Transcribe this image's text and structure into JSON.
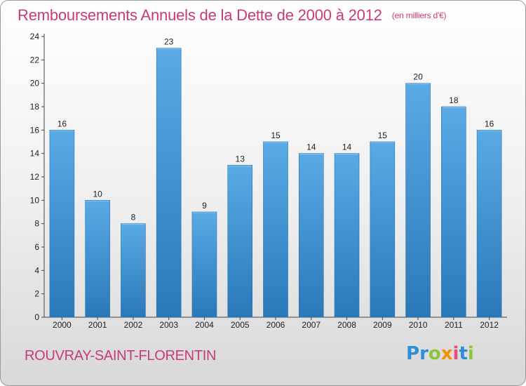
{
  "chart_data": {
    "type": "bar",
    "title": "Remboursements Annuels de la Dette de 2000 à 2012",
    "subtitle": "(en milliers d'€)",
    "categories": [
      "2000",
      "2001",
      "2002",
      "2003",
      "2004",
      "2005",
      "2006",
      "2007",
      "2008",
      "2009",
      "2010",
      "2011",
      "2012"
    ],
    "values": [
      16,
      10,
      8,
      23,
      9,
      13,
      15,
      14,
      14,
      15,
      20,
      18,
      16
    ],
    "ylim": [
      0,
      24
    ],
    "yticks": [
      0,
      2,
      4,
      6,
      8,
      10,
      12,
      14,
      16,
      18,
      20,
      22,
      24
    ],
    "xlabel": "",
    "ylabel": "",
    "grid": false,
    "bar_color_top": "#5aaae6",
    "bar_color_bottom": "#2a78b8"
  },
  "footer": {
    "commune": "ROUVRAY-SAINT-FLORENTIN",
    "logo_letters": [
      "P",
      "r",
      "o",
      "x",
      "i",
      "t",
      "i"
    ],
    "logo_colors": [
      "#2f8fd6",
      "#2f8fd6",
      "#8cc63e",
      "#f29100",
      "#e94e77",
      "#2f8fd6",
      "#8cc63e"
    ]
  },
  "colors": {
    "title": "#c83a78",
    "axis": "#444444"
  }
}
